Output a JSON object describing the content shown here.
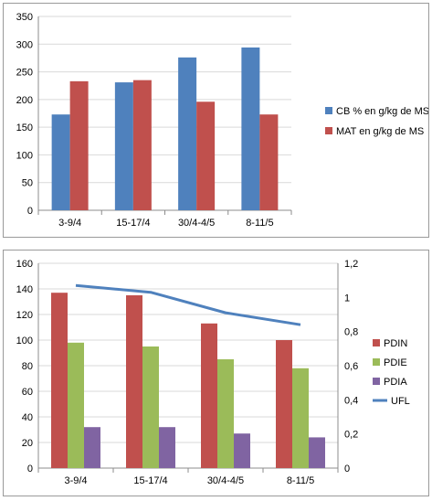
{
  "chart_data": [
    {
      "type": "bar",
      "categories": [
        "3-9/4",
        "15-17/4",
        "30/4-4/5",
        "8-11/5"
      ],
      "series": [
        {
          "name": "CB % en g/kg de MS",
          "color": "#4f81bd",
          "values": [
            173,
            231,
            276,
            294
          ]
        },
        {
          "name": "MAT en g/kg de MS",
          "color": "#c0504d",
          "values": [
            233,
            235,
            196,
            173
          ]
        }
      ],
      "ylim": [
        0,
        350
      ],
      "yticks": [
        "0",
        "50",
        "100",
        "150",
        "200",
        "250",
        "300",
        "350"
      ],
      "grid": true,
      "legend": "right"
    },
    {
      "type": "bar",
      "categories": [
        "3-9/4",
        "15-17/4",
        "30/4-4/5",
        "8-11/5"
      ],
      "series": [
        {
          "name": "PDIN",
          "color": "#c0504d",
          "axis": "left",
          "values": [
            137,
            135,
            113,
            100
          ]
        },
        {
          "name": "PDIE",
          "color": "#9bbb59",
          "axis": "left",
          "values": [
            98,
            95,
            85,
            78
          ]
        },
        {
          "name": "PDIA",
          "color": "#8064a2",
          "axis": "left",
          "values": [
            32,
            32,
            27,
            24
          ]
        },
        {
          "name": "UFL",
          "color": "#4f81bd",
          "axis": "right",
          "type": "line",
          "values": [
            1.07,
            1.03,
            0.91,
            0.84
          ]
        }
      ],
      "ylim": [
        0,
        160
      ],
      "yticks": [
        "0",
        "20",
        "40",
        "60",
        "80",
        "100",
        "120",
        "140",
        "160"
      ],
      "y2lim": [
        0,
        1.2
      ],
      "y2ticks": [
        "0",
        "0,2",
        "0,4",
        "0,6",
        "0,8",
        "1",
        "1,2"
      ],
      "grid": true,
      "legend": "right"
    }
  ]
}
